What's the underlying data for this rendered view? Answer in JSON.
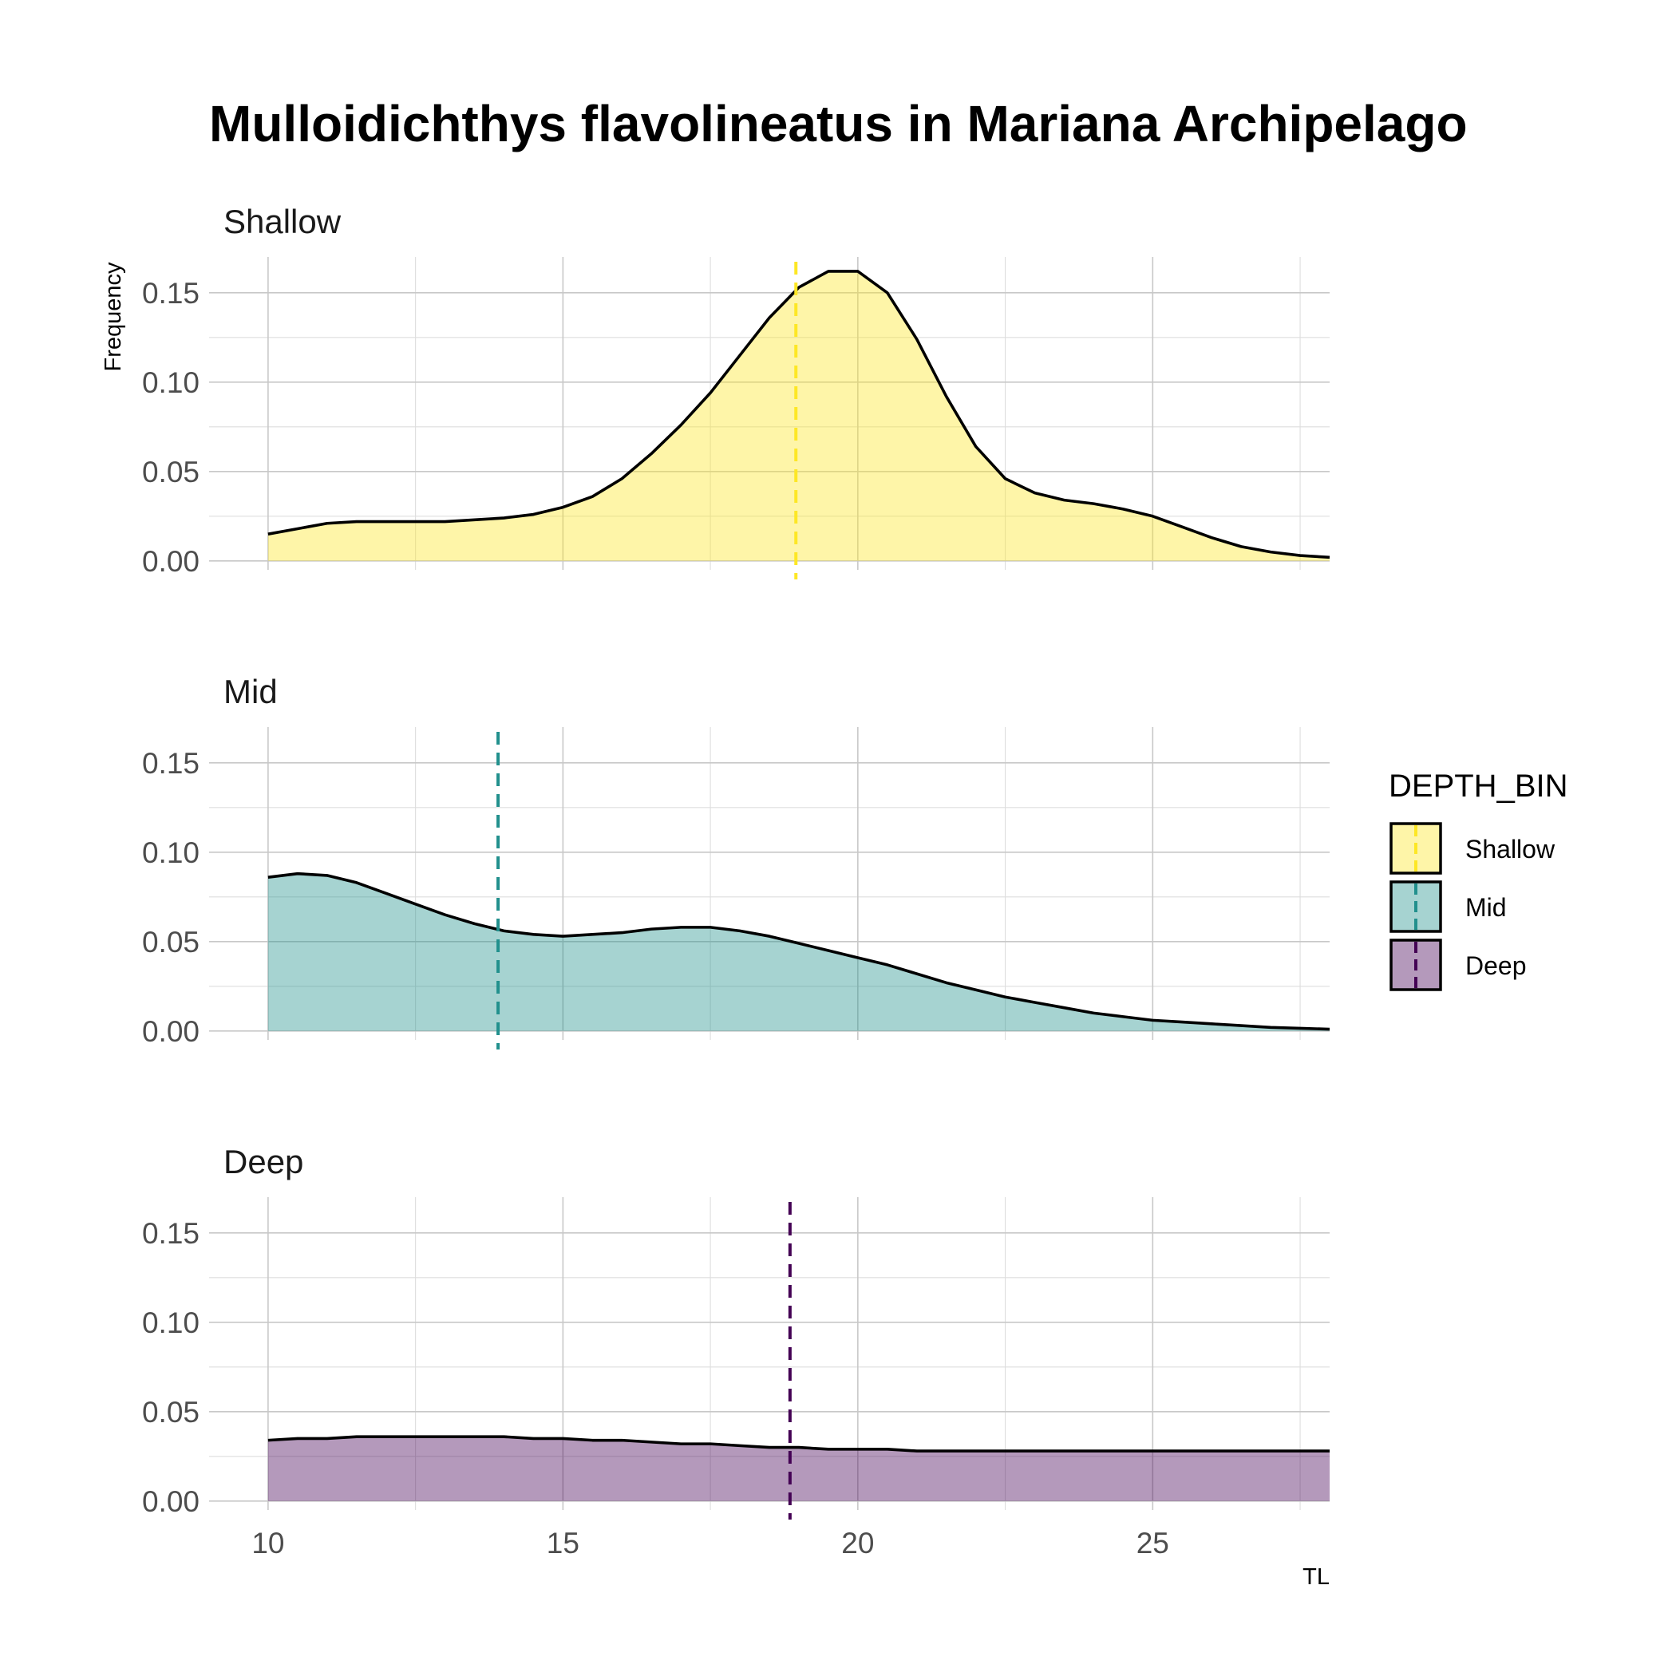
{
  "chart_data": {
    "type": "area",
    "chart_kind": "faceted density plot",
    "title": "Mulloidichthys flavolineatus in Mariana Archipelago",
    "xlabel": "TL",
    "ylabel": "Frequency",
    "xlim": [
      9,
      28
    ],
    "ylim": [
      -0.005,
      0.17
    ],
    "x_ticks": [
      10,
      15,
      20,
      25
    ],
    "y_ticks": [
      0.0,
      0.05,
      0.1,
      0.15
    ],
    "y_tick_labels": [
      "0.00",
      "0.05",
      "0.10",
      "0.15"
    ],
    "grid": true,
    "legend": {
      "title": "DEPTH_BIN",
      "placement": "right",
      "entries": [
        "Shallow",
        "Mid",
        "Deep"
      ]
    },
    "series": [
      {
        "name": "Shallow",
        "fill": "#fde725",
        "line_color": "#fde725",
        "mean_line": 18.95,
        "x": [
          10,
          10.5,
          11,
          11.5,
          12,
          12.5,
          13,
          13.5,
          14,
          14.5,
          15,
          15.5,
          16,
          16.5,
          17,
          17.5,
          18,
          18.5,
          19,
          19.5,
          20,
          20.5,
          21,
          21.5,
          22,
          22.5,
          23,
          23.5,
          24,
          24.5,
          25,
          25.5,
          26,
          26.5,
          27,
          27.5,
          28
        ],
        "values": [
          0.015,
          0.018,
          0.021,
          0.022,
          0.022,
          0.022,
          0.022,
          0.023,
          0.024,
          0.026,
          0.03,
          0.036,
          0.046,
          0.06,
          0.076,
          0.094,
          0.115,
          0.136,
          0.153,
          0.162,
          0.162,
          0.15,
          0.124,
          0.092,
          0.064,
          0.046,
          0.038,
          0.034,
          0.032,
          0.029,
          0.025,
          0.019,
          0.013,
          0.008,
          0.005,
          0.003,
          0.002
        ]
      },
      {
        "name": "Mid",
        "fill": "#21908d",
        "line_color": "#21908d",
        "mean_line": 13.9,
        "x": [
          10,
          10.5,
          11,
          11.5,
          12,
          12.5,
          13,
          13.5,
          14,
          14.5,
          15,
          15.5,
          16,
          16.5,
          17,
          17.5,
          18,
          18.5,
          19,
          19.5,
          20,
          20.5,
          21,
          21.5,
          22,
          22.5,
          23,
          23.5,
          24,
          24.5,
          25,
          25.5,
          26,
          26.5,
          27,
          27.5,
          28
        ],
        "values": [
          0.086,
          0.088,
          0.087,
          0.083,
          0.077,
          0.071,
          0.065,
          0.06,
          0.056,
          0.054,
          0.053,
          0.054,
          0.055,
          0.057,
          0.058,
          0.058,
          0.056,
          0.053,
          0.049,
          0.045,
          0.041,
          0.037,
          0.032,
          0.027,
          0.023,
          0.019,
          0.016,
          0.013,
          0.01,
          0.008,
          0.006,
          0.005,
          0.004,
          0.003,
          0.002,
          0.0015,
          0.001
        ]
      },
      {
        "name": "Deep",
        "fill": "#440154",
        "line_color": "#440154",
        "mean_line": 18.85,
        "x": [
          10,
          10.5,
          11,
          11.5,
          12,
          12.5,
          13,
          13.5,
          14,
          14.5,
          15,
          15.5,
          16,
          16.5,
          17,
          17.5,
          18,
          18.5,
          19,
          19.5,
          20,
          20.5,
          21,
          21.5,
          22,
          22.5,
          23,
          23.5,
          24,
          24.5,
          25,
          25.5,
          26,
          26.5,
          27,
          27.5,
          28
        ],
        "values": [
          0.034,
          0.035,
          0.035,
          0.036,
          0.036,
          0.036,
          0.036,
          0.036,
          0.036,
          0.035,
          0.035,
          0.034,
          0.034,
          0.033,
          0.032,
          0.032,
          0.031,
          0.03,
          0.03,
          0.029,
          0.029,
          0.029,
          0.028,
          0.028,
          0.028,
          0.028,
          0.028,
          0.028,
          0.028,
          0.028,
          0.028,
          0.028,
          0.028,
          0.028,
          0.028,
          0.028,
          0.028
        ]
      }
    ]
  }
}
